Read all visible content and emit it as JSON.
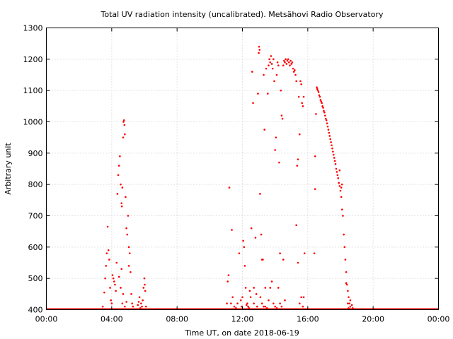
{
  "chart_data": {
    "type": "scatter",
    "title": "Total UV radiation intensity (uncalibrated). Metsähovi Radio Observatory",
    "xlabel": "Time UT, on date 2018-06-19",
    "ylabel": "Arbitrary unit",
    "xlim": [
      0,
      24
    ],
    "ylim": [
      400,
      1300
    ],
    "xticks": [
      0,
      4,
      8,
      12,
      16,
      20,
      24
    ],
    "xtick_labels": [
      "00:00",
      "04:00",
      "08:00",
      "12:00",
      "16:00",
      "20:00",
      "00:00"
    ],
    "yticks": [
      400,
      500,
      600,
      700,
      800,
      900,
      1000,
      1100,
      1200,
      1300
    ],
    "ytick_labels": [
      "400",
      "500",
      "600",
      "700",
      "800",
      "900",
      "1000",
      "1100",
      "1200",
      "1300"
    ],
    "grid": true,
    "legend": false,
    "series_color": "#ff0000",
    "x_units": "hours UT",
    "baseline": {
      "value": 400,
      "x_start": 0,
      "x_end": 24
    },
    "points": [
      [
        3.45,
        410
      ],
      [
        3.55,
        455
      ],
      [
        3.6,
        500
      ],
      [
        3.65,
        540
      ],
      [
        3.7,
        580
      ],
      [
        3.75,
        665
      ],
      [
        3.8,
        590
      ],
      [
        3.85,
        560
      ],
      [
        3.9,
        470
      ],
      [
        3.95,
        430
      ],
      [
        4.0,
        420
      ],
      [
        4.05,
        510
      ],
      [
        4.1,
        500
      ],
      [
        4.15,
        490
      ],
      [
        4.2,
        480
      ],
      [
        4.25,
        460
      ],
      [
        4.3,
        550
      ],
      [
        4.35,
        770
      ],
      [
        4.4,
        830
      ],
      [
        4.45,
        860
      ],
      [
        4.5,
        890
      ],
      [
        4.55,
        800
      ],
      [
        4.6,
        740
      ],
      [
        4.62,
        730
      ],
      [
        4.65,
        790
      ],
      [
        4.7,
        950
      ],
      [
        4.72,
        1000
      ],
      [
        4.75,
        1005
      ],
      [
        4.78,
        990
      ],
      [
        4.8,
        960
      ],
      [
        4.85,
        760
      ],
      [
        4.9,
        660
      ],
      [
        4.95,
        640
      ],
      [
        5.0,
        700
      ],
      [
        5.05,
        600
      ],
      [
        5.1,
        580
      ],
      [
        5.15,
        520
      ],
      [
        5.2,
        450
      ],
      [
        5.25,
        420
      ],
      [
        5.3,
        410
      ],
      [
        4.6,
        530
      ],
      [
        4.7,
        450
      ],
      [
        4.8,
        410
      ],
      [
        4.9,
        425
      ],
      [
        5.05,
        540
      ],
      [
        4.45,
        505
      ],
      [
        4.55,
        470
      ],
      [
        4.65,
        420
      ],
      [
        5.6,
        415
      ],
      [
        5.7,
        440
      ],
      [
        5.8,
        420
      ],
      [
        5.9,
        430
      ],
      [
        5.95,
        470
      ],
      [
        6.0,
        500
      ],
      [
        6.05,
        460
      ],
      [
        6.1,
        410
      ],
      [
        5.75,
        405
      ],
      [
        5.85,
        410
      ],
      [
        6.02,
        480
      ],
      [
        5.65,
        425
      ],
      [
        11.05,
        420
      ],
      [
        11.1,
        490
      ],
      [
        11.15,
        510
      ],
      [
        11.2,
        790
      ],
      [
        11.3,
        420
      ],
      [
        11.35,
        655
      ],
      [
        11.4,
        440
      ],
      [
        11.5,
        410
      ],
      [
        11.6,
        405
      ],
      [
        11.7,
        420
      ],
      [
        11.8,
        580
      ],
      [
        11.9,
        430
      ],
      [
        12.0,
        440
      ],
      [
        12.05,
        620
      ],
      [
        12.1,
        600
      ],
      [
        12.15,
        540
      ],
      [
        12.2,
        470
      ],
      [
        12.3,
        420
      ],
      [
        12.35,
        410
      ],
      [
        12.45,
        460
      ],
      [
        12.5,
        440
      ],
      [
        12.55,
        660
      ],
      [
        12.6,
        1160
      ],
      [
        12.65,
        1060
      ],
      [
        12.7,
        420
      ],
      [
        12.8,
        630
      ],
      [
        12.9,
        410
      ],
      [
        12.95,
        1090
      ],
      [
        13.0,
        1220
      ],
      [
        13.02,
        1240
      ],
      [
        13.05,
        1230
      ],
      [
        13.08,
        770
      ],
      [
        13.15,
        640
      ],
      [
        13.2,
        560
      ],
      [
        13.25,
        560
      ],
      [
        13.3,
        1150
      ],
      [
        13.35,
        975
      ],
      [
        13.4,
        470
      ],
      [
        13.45,
        1170
      ],
      [
        13.55,
        1090
      ],
      [
        13.6,
        1180
      ],
      [
        13.65,
        1200
      ],
      [
        13.7,
        1190
      ],
      [
        13.75,
        1210
      ],
      [
        13.8,
        1185
      ],
      [
        13.85,
        1170
      ],
      [
        13.9,
        1200
      ],
      [
        13.95,
        1130
      ],
      [
        14.0,
        910
      ],
      [
        14.05,
        950
      ],
      [
        14.1,
        1150
      ],
      [
        14.15,
        1190
      ],
      [
        14.2,
        1180
      ],
      [
        14.25,
        870
      ],
      [
        14.3,
        580
      ],
      [
        14.35,
        1100
      ],
      [
        14.4,
        1020
      ],
      [
        14.45,
        1010
      ],
      [
        14.5,
        1180
      ],
      [
        14.55,
        1195
      ],
      [
        14.6,
        1190
      ],
      [
        14.65,
        1200
      ],
      [
        14.7,
        1185
      ],
      [
        14.75,
        1195
      ],
      [
        14.8,
        1200
      ],
      [
        14.85,
        1190
      ],
      [
        14.9,
        1180
      ],
      [
        14.95,
        1195
      ],
      [
        15.0,
        1185
      ],
      [
        15.05,
        1190
      ],
      [
        15.1,
        1170
      ],
      [
        15.15,
        1160
      ],
      [
        15.2,
        1165
      ],
      [
        15.25,
        1150
      ],
      [
        15.3,
        1130
      ],
      [
        15.35,
        860
      ],
      [
        15.4,
        880
      ],
      [
        15.45,
        1080
      ],
      [
        15.5,
        960
      ],
      [
        15.55,
        1130
      ],
      [
        15.6,
        1120
      ],
      [
        15.65,
        1060
      ],
      [
        15.7,
        1050
      ],
      [
        15.75,
        1080
      ],
      [
        15.8,
        580
      ],
      [
        15.3,
        670
      ],
      [
        15.4,
        550
      ],
      [
        15.5,
        420
      ],
      [
        15.6,
        440
      ],
      [
        15.7,
        410
      ],
      [
        15.75,
        440
      ],
      [
        13.2,
        420
      ],
      [
        13.3,
        410
      ],
      [
        13.4,
        410
      ],
      [
        13.5,
        405
      ],
      [
        13.6,
        430
      ],
      [
        13.7,
        470
      ],
      [
        13.8,
        490
      ],
      [
        13.9,
        420
      ],
      [
        14.0,
        410
      ],
      [
        14.1,
        405
      ],
      [
        14.2,
        470
      ],
      [
        14.3,
        420
      ],
      [
        14.4,
        410
      ],
      [
        14.5,
        560
      ],
      [
        14.6,
        430
      ],
      [
        12.4,
        405
      ],
      [
        12.7,
        470
      ],
      [
        12.85,
        450
      ],
      [
        13.1,
        440
      ],
      [
        11.95,
        410
      ],
      [
        12.25,
        415
      ],
      [
        16.55,
        1110
      ],
      [
        16.58,
        1105
      ],
      [
        16.62,
        1100
      ],
      [
        16.66,
        1095
      ],
      [
        16.7,
        1085
      ],
      [
        16.74,
        1080
      ],
      [
        16.78,
        1070
      ],
      [
        16.82,
        1065
      ],
      [
        16.86,
        1060
      ],
      [
        16.9,
        1050
      ],
      [
        16.94,
        1045
      ],
      [
        16.98,
        1035
      ],
      [
        17.02,
        1030
      ],
      [
        17.06,
        1020
      ],
      [
        17.1,
        1010
      ],
      [
        17.14,
        1005
      ],
      [
        17.18,
        995
      ],
      [
        17.22,
        985
      ],
      [
        17.26,
        975
      ],
      [
        17.3,
        965
      ],
      [
        17.34,
        955
      ],
      [
        17.38,
        945
      ],
      [
        17.42,
        935
      ],
      [
        17.46,
        925
      ],
      [
        17.5,
        915
      ],
      [
        17.54,
        905
      ],
      [
        17.58,
        895
      ],
      [
        17.62,
        885
      ],
      [
        17.66,
        875
      ],
      [
        17.7,
        865
      ],
      [
        17.74,
        850
      ],
      [
        17.78,
        840
      ],
      [
        17.82,
        830
      ],
      [
        17.86,
        820
      ],
      [
        17.9,
        805
      ],
      [
        17.95,
        795
      ],
      [
        18.0,
        780
      ],
      [
        18.05,
        760
      ],
      [
        18.1,
        720
      ],
      [
        18.15,
        700
      ],
      [
        18.2,
        640
      ],
      [
        18.25,
        600
      ],
      [
        18.3,
        560
      ],
      [
        18.35,
        520
      ],
      [
        18.4,
        480
      ],
      [
        18.45,
        460
      ],
      [
        18.5,
        440
      ],
      [
        18.55,
        420
      ],
      [
        18.6,
        410
      ],
      [
        16.45,
        890
      ],
      [
        16.5,
        1025
      ],
      [
        16.45,
        785
      ],
      [
        16.4,
        580
      ],
      [
        17.95,
        845
      ],
      [
        18.05,
        790
      ],
      [
        18.1,
        800
      ],
      [
        18.35,
        485
      ],
      [
        18.45,
        420
      ],
      [
        18.5,
        405
      ],
      [
        18.6,
        430
      ],
      [
        18.7,
        415
      ],
      [
        18.75,
        405
      ]
    ]
  }
}
